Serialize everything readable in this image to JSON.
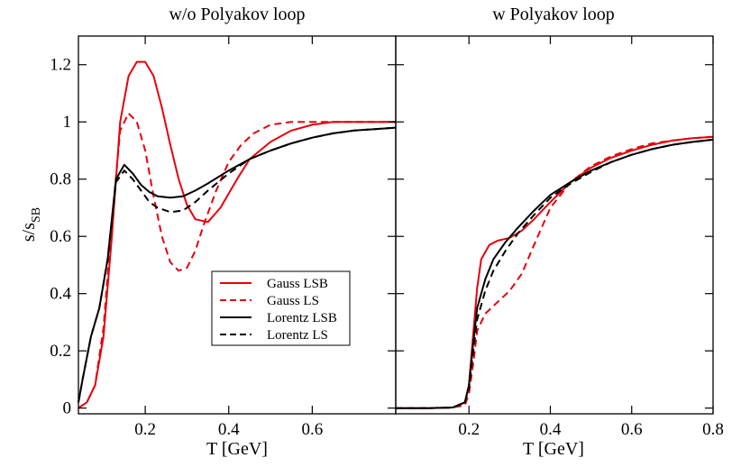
{
  "chart_data": [
    {
      "type": "line",
      "title": "w/o Polyakov loop",
      "xlabel": "T [GeV]",
      "ylabel": "s/s",
      "ylabel_sub": "SB",
      "xlim": [
        0.04,
        0.8
      ],
      "ylim": [
        -0.02,
        1.3
      ],
      "xticks": [
        0.2,
        0.4,
        0.6
      ],
      "xtick_labels": [
        "0.2",
        "0.4",
        "0.6"
      ],
      "yticks": [
        0,
        0.2,
        0.4,
        0.6,
        0.8,
        1,
        1.2
      ],
      "ytick_labels": [
        "0",
        "0.2",
        "0.4",
        "0.6",
        "0.8",
        "1",
        "1.2"
      ],
      "grid": false,
      "legend_position": "lower-right",
      "series": [
        {
          "name": "Gauss LSB",
          "color": "#e8000b",
          "dash": "solid",
          "x": [
            0.04,
            0.06,
            0.08,
            0.1,
            0.12,
            0.14,
            0.16,
            0.18,
            0.2,
            0.22,
            0.24,
            0.26,
            0.28,
            0.3,
            0.32,
            0.35,
            0.38,
            0.42,
            0.45,
            0.5,
            0.55,
            0.6,
            0.65,
            0.7,
            0.75,
            0.8
          ],
          "y": [
            0,
            0.02,
            0.08,
            0.25,
            0.6,
            1.0,
            1.16,
            1.21,
            1.21,
            1.16,
            1.05,
            0.92,
            0.8,
            0.71,
            0.66,
            0.65,
            0.7,
            0.8,
            0.87,
            0.93,
            0.97,
            0.99,
            1.0,
            1.0,
            1.0,
            1.0
          ]
        },
        {
          "name": "Gauss LS",
          "color": "#e8000b",
          "dash": "dashed",
          "x": [
            0.04,
            0.06,
            0.08,
            0.1,
            0.12,
            0.14,
            0.16,
            0.18,
            0.2,
            0.22,
            0.24,
            0.26,
            0.28,
            0.3,
            0.32,
            0.34,
            0.37,
            0.4,
            0.43,
            0.46,
            0.5,
            0.55,
            0.6,
            0.65,
            0.7,
            0.75,
            0.8
          ],
          "y": [
            0,
            0.02,
            0.08,
            0.28,
            0.65,
            0.97,
            1.03,
            1.0,
            0.9,
            0.74,
            0.6,
            0.51,
            0.48,
            0.49,
            0.55,
            0.64,
            0.76,
            0.86,
            0.92,
            0.96,
            0.99,
            1.0,
            1.0,
            1.0,
            1.0,
            1.0,
            1.0
          ]
        },
        {
          "name": "Lorentz LSB",
          "color": "#000000",
          "dash": "solid",
          "x": [
            0.04,
            0.05,
            0.07,
            0.09,
            0.11,
            0.13,
            0.15,
            0.17,
            0.19,
            0.21,
            0.23,
            0.26,
            0.29,
            0.32,
            0.35,
            0.4,
            0.45,
            0.5,
            0.55,
            0.6,
            0.65,
            0.7,
            0.75,
            0.8
          ],
          "y": [
            0.02,
            0.1,
            0.25,
            0.35,
            0.52,
            0.8,
            0.85,
            0.82,
            0.78,
            0.755,
            0.74,
            0.735,
            0.74,
            0.76,
            0.785,
            0.83,
            0.87,
            0.9,
            0.925,
            0.945,
            0.96,
            0.97,
            0.975,
            0.98
          ]
        },
        {
          "name": "Lorentz LS",
          "color": "#000000",
          "dash": "dashed",
          "x": [
            0.04,
            0.05,
            0.07,
            0.09,
            0.11,
            0.13,
            0.15,
            0.17,
            0.19,
            0.21,
            0.23,
            0.26,
            0.29,
            0.32,
            0.35,
            0.4,
            0.45,
            0.5,
            0.55,
            0.6,
            0.65,
            0.7,
            0.75,
            0.8
          ],
          "y": [
            0.02,
            0.1,
            0.25,
            0.35,
            0.52,
            0.79,
            0.83,
            0.8,
            0.76,
            0.72,
            0.7,
            0.685,
            0.69,
            0.72,
            0.76,
            0.82,
            0.87,
            0.9,
            0.925,
            0.945,
            0.96,
            0.97,
            0.975,
            0.98
          ]
        }
      ]
    },
    {
      "type": "line",
      "title": "w Polyakov loop",
      "xlabel": "T [GeV]",
      "xlim": [
        0.02,
        0.8
      ],
      "ylim": [
        -0.02,
        1.3
      ],
      "xticks": [
        0.2,
        0.4,
        0.6,
        0.8
      ],
      "xtick_labels": [
        "0.2",
        "0.4",
        "0.6",
        "0.8"
      ],
      "grid": false,
      "series": [
        {
          "name": "Gauss LSB",
          "color": "#e8000b",
          "dash": "solid",
          "x": [
            0.02,
            0.1,
            0.16,
            0.19,
            0.2,
            0.21,
            0.22,
            0.23,
            0.25,
            0.27,
            0.3,
            0.33,
            0.36,
            0.4,
            0.45,
            0.5,
            0.55,
            0.6,
            0.65,
            0.7,
            0.75,
            0.8
          ],
          "y": [
            0,
            0,
            0.002,
            0.02,
            0.08,
            0.25,
            0.42,
            0.52,
            0.57,
            0.585,
            0.595,
            0.62,
            0.66,
            0.72,
            0.79,
            0.84,
            0.875,
            0.9,
            0.92,
            0.935,
            0.943,
            0.948
          ]
        },
        {
          "name": "Gauss LS",
          "color": "#e8000b",
          "dash": "dashed",
          "x": [
            0.02,
            0.1,
            0.16,
            0.19,
            0.2,
            0.21,
            0.22,
            0.24,
            0.27,
            0.3,
            0.33,
            0.36,
            0.4,
            0.45,
            0.5,
            0.55,
            0.6,
            0.65,
            0.7,
            0.75,
            0.8
          ],
          "y": [
            0,
            0,
            0.002,
            0.01,
            0.05,
            0.15,
            0.27,
            0.33,
            0.37,
            0.41,
            0.47,
            0.57,
            0.7,
            0.79,
            0.845,
            0.88,
            0.905,
            0.925,
            0.935,
            0.943,
            0.948
          ]
        },
        {
          "name": "Lorentz LSB",
          "color": "#000000",
          "dash": "solid",
          "x": [
            0.02,
            0.1,
            0.16,
            0.19,
            0.2,
            0.21,
            0.22,
            0.24,
            0.26,
            0.29,
            0.32,
            0.36,
            0.4,
            0.45,
            0.5,
            0.55,
            0.6,
            0.65,
            0.7,
            0.75,
            0.8
          ],
          "y": [
            0,
            0,
            0.002,
            0.02,
            0.08,
            0.22,
            0.35,
            0.45,
            0.52,
            0.58,
            0.63,
            0.69,
            0.745,
            0.79,
            0.83,
            0.86,
            0.885,
            0.905,
            0.92,
            0.93,
            0.938
          ]
        },
        {
          "name": "Lorentz LS",
          "color": "#000000",
          "dash": "dashed",
          "x": [
            0.02,
            0.1,
            0.16,
            0.19,
            0.2,
            0.21,
            0.22,
            0.24,
            0.26,
            0.29,
            0.32,
            0.36,
            0.4,
            0.45,
            0.5,
            0.55,
            0.6,
            0.65,
            0.7,
            0.75,
            0.8
          ],
          "y": [
            0,
            0,
            0.002,
            0.02,
            0.07,
            0.19,
            0.31,
            0.41,
            0.48,
            0.55,
            0.61,
            0.675,
            0.735,
            0.785,
            0.825,
            0.86,
            0.885,
            0.905,
            0.92,
            0.93,
            0.938
          ]
        }
      ]
    }
  ]
}
